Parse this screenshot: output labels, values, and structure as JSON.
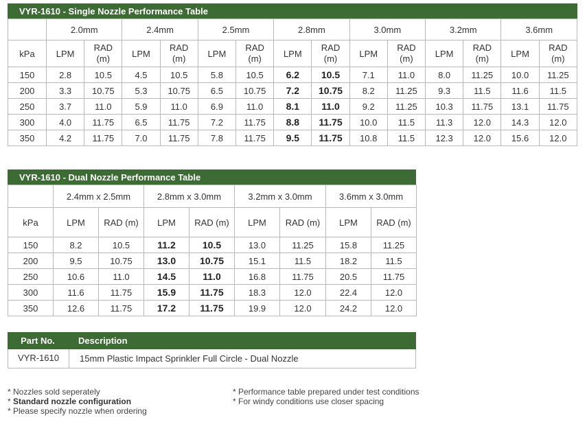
{
  "single_table": {
    "title": "VYR-1610 - Single Nozzle Performance Table",
    "sizes": [
      "2.0mm",
      "2.4mm",
      "2.5mm",
      "2.8mm",
      "3.0mm",
      "3.2mm",
      "3.6mm"
    ],
    "kpa_label": "kPa",
    "lpm_label": "LPM",
    "rad_label_line1": "RAD",
    "rad_label_line2": "(m)",
    "rows": [
      {
        "kpa": "150",
        "cells": [
          "2.8",
          "10.5",
          "4.5",
          "10.5",
          "5.8",
          "10.5",
          "6.2",
          "10.5",
          "7.1",
          "11.0",
          "8.0",
          "11.25",
          "10.0",
          "11.25"
        ]
      },
      {
        "kpa": "200",
        "cells": [
          "3.3",
          "10.75",
          "5.3",
          "10.75",
          "6.5",
          "10.75",
          "7.2",
          "10.75",
          "8.2",
          "11.25",
          "9.3",
          "11.5",
          "11.6",
          "11.5"
        ]
      },
      {
        "kpa": "250",
        "cells": [
          "3.7",
          "11.0",
          "5.9",
          "11.0",
          "6.9",
          "11.0",
          "8.1",
          "11.0",
          "9.2",
          "11.25",
          "10.3",
          "11.75",
          "13.1",
          "11.75"
        ]
      },
      {
        "kpa": "300",
        "cells": [
          "4.0",
          "11.75",
          "6.5",
          "11.75",
          "7.2",
          "11.75",
          "8.8",
          "11.75",
          "10.0",
          "11.5",
          "11.3",
          "12.0",
          "14.3",
          "12.0"
        ]
      },
      {
        "kpa": "350",
        "cells": [
          "4.2",
          "11.75",
          "7.0",
          "11.75",
          "7.8",
          "11.75",
          "9.5",
          "11.75",
          "10.8",
          "11.5",
          "12.3",
          "12.0",
          "15.6",
          "12.0"
        ]
      }
    ]
  },
  "dual_table": {
    "title": "VYR-1610 - Dual Nozzle Performance Table",
    "sizes": [
      "2.4mm x 2.5mm",
      "2.8mm x 3.0mm",
      "3.2mm x 3.0mm",
      "3.6mm x 3.0mm"
    ],
    "kpa_label": "kPa",
    "lpm_label": "LPM",
    "rad_label": "RAD (m)",
    "rows": [
      {
        "kpa": "150",
        "cells": [
          "8.2",
          "10.5",
          "11.2",
          "10.5",
          "13.0",
          "11.25",
          "15.8",
          "11.25"
        ]
      },
      {
        "kpa": "200",
        "cells": [
          "9.5",
          "10.75",
          "13.0",
          "10.75",
          "15.1",
          "11.5",
          "18.2",
          "11.5"
        ]
      },
      {
        "kpa": "250",
        "cells": [
          "10.6",
          "11.0",
          "14.5",
          "11.0",
          "16.8",
          "11.75",
          "20.5",
          "11.75"
        ]
      },
      {
        "kpa": "300",
        "cells": [
          "11.6",
          "11.75",
          "15.9",
          "11.75",
          "18.3",
          "12.0",
          "22.4",
          "12.0"
        ]
      },
      {
        "kpa": "350",
        "cells": [
          "12.6",
          "11.75",
          "17.2",
          "11.75",
          "19.9",
          "12.0",
          "24.2",
          "12.0"
        ]
      }
    ]
  },
  "parts_table": {
    "col_part": "Part No.",
    "col_description": "Description",
    "part_no": "VYR-1610",
    "description": "15mm Plastic Impact Sprinkler Full Circle - Dual Nozzle"
  },
  "notes_left": [
    "* Nozzles sold seperately",
    "Standard nozzle configuration",
    "* Please specify nozzle when ordering"
  ],
  "notes_left_bold_prefix": "* ",
  "notes_right": [
    "* Performance table prepared under test conditions",
    "* For windy conditions use closer spacing"
  ],
  "colors": {
    "header_green": "#3d6b34",
    "border_gray": "#b8b8b8"
  }
}
